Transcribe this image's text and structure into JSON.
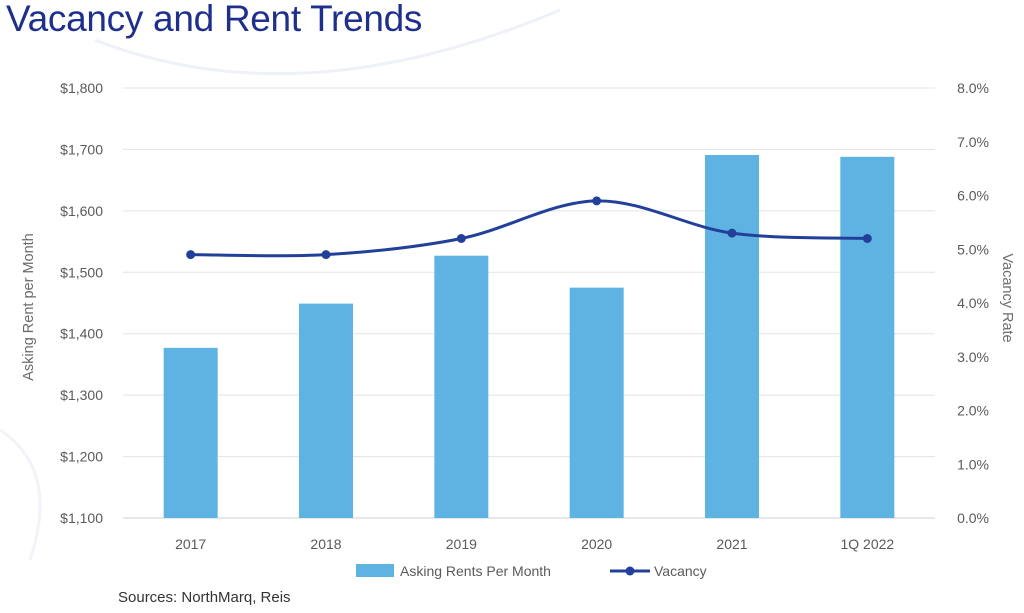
{
  "page": {
    "title": "Vacancy and Rent Trends",
    "sources": "Sources: NorthMarq, Reis"
  },
  "chart_data": {
    "type": "bar+line",
    "title": "Vacancy and Rent Trends",
    "categories": [
      "2017",
      "2018",
      "2019",
      "2020",
      "2021",
      "1Q 2022"
    ],
    "series": [
      {
        "name": "Asking Rents Per Month",
        "type": "bar",
        "axis": "left",
        "values": [
          1377,
          1449,
          1527,
          1475,
          1691,
          1688
        ]
      },
      {
        "name": "Vacancy",
        "type": "line",
        "axis": "right",
        "values": [
          4.9,
          4.9,
          5.2,
          5.9,
          5.3,
          5.2
        ]
      }
    ],
    "ylabel_left": "Asking Rent per Month",
    "ylabel_right": "Vacancy Rate",
    "ylim_left": [
      1100,
      1800
    ],
    "ylim_right": [
      0,
      8
    ],
    "yticks_left": [
      "$1,100",
      "$1,200",
      "$1,300",
      "$1,400",
      "$1,500",
      "$1,600",
      "$1,700",
      "$1,800"
    ],
    "yticks_right": [
      "0.0%",
      "1.0%",
      "2.0%",
      "3.0%",
      "4.0%",
      "5.0%",
      "6.0%",
      "7.0%",
      "8.0%"
    ],
    "grid": true,
    "legend_position": "bottom"
  },
  "colors": {
    "bar": "#5fb3e3",
    "line": "#22409a",
    "grid": "#e3e3e3",
    "title": "#1e2f8c"
  }
}
